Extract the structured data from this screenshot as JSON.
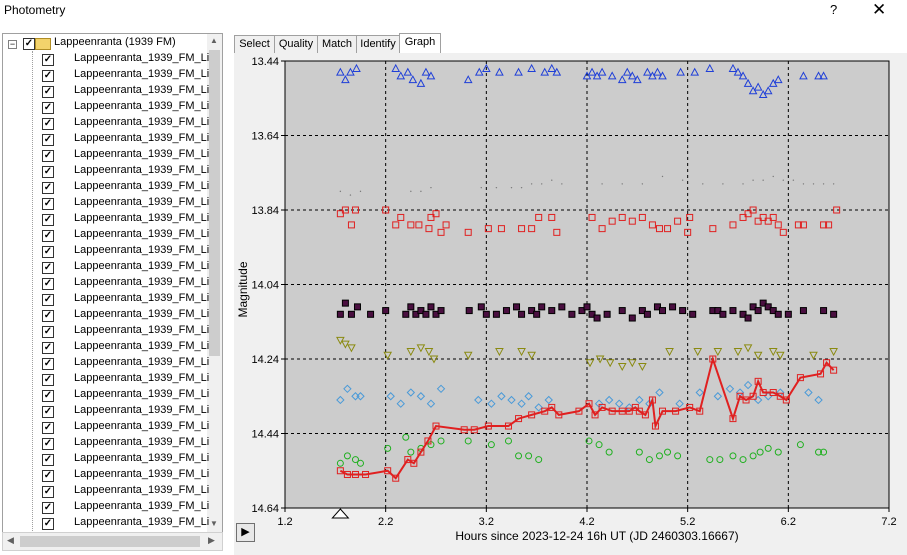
{
  "window": {
    "title": "Photometry",
    "help_glyph": "?",
    "close_glyph": "✕"
  },
  "tree": {
    "root_label": "Lappeenranta (1939 FM)",
    "item_label": "Lappeenranta_1939_FM_Li",
    "item_count": 30
  },
  "tabs": [
    {
      "label": "Select"
    },
    {
      "label": "Quality"
    },
    {
      "label": "Match"
    },
    {
      "label": "Identify"
    },
    {
      "label": "Graph",
      "active": true
    }
  ],
  "play_glyph": "▶",
  "chart_data": {
    "type": "scatter",
    "xlabel": "Hours since 2023-12-24 16h UT (JD 2460303.16667)",
    "ylabel": "Magnitude",
    "xlim": [
      1.2,
      7.2
    ],
    "ylim": [
      13.44,
      14.64
    ],
    "y_inverted": true,
    "xticks": [
      "1.2",
      "2.2",
      "3.2",
      "4.2",
      "5.2",
      "6.2",
      "7.2"
    ],
    "yticks": [
      "13.44",
      "13.64",
      "13.84",
      "14.04",
      "14.24",
      "14.44",
      "14.64"
    ],
    "grid": true,
    "marker_x": 1.75,
    "series": [
      {
        "marker": "triangle-up",
        "color": "#1f3fd8",
        "x": [
          1.75,
          1.8,
          1.85,
          1.91,
          2.3,
          2.35,
          2.42,
          2.47,
          2.55,
          2.6,
          2.65,
          3.02,
          3.13,
          3.2,
          3.33,
          3.52,
          3.65,
          3.78,
          3.85,
          3.9,
          4.2,
          4.25,
          4.3,
          4.35,
          4.45,
          4.55,
          4.6,
          4.65,
          4.7,
          4.8,
          4.85,
          4.9,
          4.95,
          5.13,
          5.27,
          5.42,
          5.65,
          5.7,
          5.75,
          5.8,
          5.85,
          5.9,
          5.95,
          6.0,
          6.05,
          6.1,
          6.35,
          6.5,
          6.55
        ],
        "y": [
          13.47,
          13.49,
          13.47,
          13.46,
          13.46,
          13.48,
          13.47,
          13.49,
          13.5,
          13.47,
          13.48,
          13.49,
          13.47,
          13.46,
          13.47,
          13.47,
          13.46,
          13.47,
          13.46,
          13.47,
          13.48,
          13.47,
          13.48,
          13.47,
          13.48,
          13.49,
          13.47,
          13.48,
          13.49,
          13.47,
          13.48,
          13.47,
          13.48,
          13.47,
          13.47,
          13.46,
          13.46,
          13.47,
          13.48,
          13.5,
          13.52,
          13.51,
          13.53,
          13.52,
          13.5,
          13.49,
          13.48,
          13.48,
          13.48
        ]
      },
      {
        "marker": "dot",
        "color": "#7a7a7a",
        "x": [
          1.75,
          1.85,
          1.95,
          2.45,
          2.55,
          2.65,
          3.15,
          3.3,
          3.45,
          3.55,
          3.65,
          3.75,
          3.85,
          3.95,
          4.35,
          4.55,
          4.75,
          4.95,
          5.15,
          5.35,
          5.55,
          5.75,
          5.85,
          5.95,
          6.05,
          6.15,
          6.25,
          6.35,
          6.45,
          6.55,
          6.65
        ],
        "y": [
          13.79,
          13.8,
          13.79,
          13.79,
          13.79,
          13.78,
          13.78,
          13.78,
          13.78,
          13.78,
          13.77,
          13.77,
          13.76,
          13.77,
          13.77,
          13.77,
          13.77,
          13.75,
          13.76,
          13.77,
          13.77,
          13.77,
          13.76,
          13.76,
          13.75,
          13.76,
          13.76,
          13.77,
          13.77,
          13.77,
          13.77
        ]
      },
      {
        "marker": "square",
        "color": "#e02020",
        "x": [
          1.75,
          1.8,
          1.86,
          1.9,
          2.2,
          2.3,
          2.35,
          2.45,
          2.53,
          2.63,
          2.65,
          2.7,
          2.75,
          2.8,
          3.02,
          3.22,
          3.35,
          3.55,
          3.65,
          3.72,
          3.85,
          3.9,
          4.25,
          4.35,
          4.45,
          4.55,
          4.65,
          4.75,
          4.85,
          4.92,
          5.0,
          5.1,
          5.2,
          5.22,
          5.45,
          5.65,
          5.75,
          5.8,
          5.85,
          5.9,
          5.95,
          6.0,
          6.05,
          6.1,
          6.15,
          6.3,
          6.35,
          6.55,
          6.6,
          6.68
        ],
        "y": [
          13.85,
          13.84,
          13.88,
          13.84,
          13.84,
          13.88,
          13.86,
          13.88,
          13.88,
          13.89,
          13.86,
          13.85,
          13.9,
          13.88,
          13.9,
          13.89,
          13.89,
          13.89,
          13.89,
          13.86,
          13.86,
          13.9,
          13.86,
          13.89,
          13.87,
          13.86,
          13.87,
          13.86,
          13.88,
          13.89,
          13.89,
          13.87,
          13.9,
          13.86,
          13.89,
          13.88,
          13.86,
          13.85,
          13.84,
          13.87,
          13.86,
          13.87,
          13.86,
          13.88,
          13.9,
          13.88,
          13.88,
          13.88,
          13.88,
          13.84
        ]
      },
      {
        "marker": "filled-square",
        "color": "#4a0f40",
        "x": [
          1.75,
          1.8,
          1.86,
          1.92,
          2.05,
          2.2,
          2.4,
          2.45,
          2.5,
          2.55,
          2.6,
          2.65,
          2.7,
          2.75,
          3.03,
          3.15,
          3.2,
          3.3,
          3.4,
          3.5,
          3.55,
          3.65,
          3.7,
          3.75,
          3.85,
          3.95,
          4.05,
          4.15,
          4.2,
          4.25,
          4.3,
          4.4,
          4.55,
          4.65,
          4.75,
          4.8,
          4.9,
          4.95,
          5.05,
          5.15,
          5.25,
          5.45,
          5.5,
          5.55,
          5.65,
          5.75,
          5.8,
          5.85,
          5.9,
          5.95,
          6.0,
          6.05,
          6.1,
          6.2,
          6.35,
          6.55,
          6.65
        ],
        "y": [
          14.12,
          14.09,
          14.12,
          14.1,
          14.12,
          14.11,
          14.12,
          14.1,
          14.12,
          14.11,
          14.12,
          14.1,
          14.12,
          14.11,
          14.11,
          14.1,
          14.12,
          14.12,
          14.11,
          14.1,
          14.12,
          14.11,
          14.12,
          14.1,
          14.11,
          14.1,
          14.12,
          14.11,
          14.1,
          14.12,
          14.13,
          14.12,
          14.11,
          14.13,
          14.11,
          14.12,
          14.1,
          14.11,
          14.1,
          14.11,
          14.12,
          14.11,
          14.11,
          14.12,
          14.11,
          14.12,
          14.13,
          14.1,
          14.11,
          14.09,
          14.1,
          14.11,
          14.12,
          14.12,
          14.11,
          14.11,
          14.12
        ]
      },
      {
        "marker": "triangle-down",
        "color": "#8a8a10",
        "x": [
          1.75,
          1.8,
          1.86,
          2.22,
          2.45,
          2.55,
          2.63,
          2.68,
          3.02,
          3.33,
          3.55,
          3.65,
          4.23,
          4.33,
          4.43,
          4.55,
          4.65,
          4.75,
          5.02,
          5.3,
          5.5,
          5.7,
          5.8,
          5.9,
          6.05,
          6.12,
          6.45,
          6.65
        ],
        "y": [
          14.19,
          14.2,
          14.21,
          14.23,
          14.22,
          14.21,
          14.22,
          14.24,
          14.23,
          14.22,
          14.22,
          14.23,
          14.25,
          14.24,
          14.25,
          14.26,
          14.25,
          14.26,
          14.22,
          14.22,
          14.22,
          14.22,
          14.21,
          14.23,
          14.22,
          14.23,
          14.23,
          14.22
        ]
      },
      {
        "marker": "diamond",
        "color": "#4a9ad8",
        "x": [
          1.75,
          1.82,
          1.9,
          1.95,
          2.25,
          2.35,
          2.45,
          2.55,
          2.65,
          2.75,
          3.12,
          3.25,
          3.35,
          3.45,
          3.55,
          3.62,
          3.72,
          3.82,
          4.32,
          4.42,
          4.52,
          4.62,
          4.72,
          4.82,
          4.92,
          5.12,
          5.32,
          5.5,
          5.62,
          5.72,
          5.8,
          5.9,
          6.0,
          6.12,
          6.4,
          6.5
        ],
        "y": [
          14.35,
          14.32,
          14.34,
          14.34,
          14.34,
          14.36,
          14.33,
          14.34,
          14.36,
          14.32,
          14.35,
          14.36,
          14.34,
          14.35,
          14.36,
          14.34,
          14.37,
          14.35,
          14.36,
          14.35,
          14.36,
          14.37,
          14.35,
          14.36,
          14.33,
          14.36,
          14.33,
          14.34,
          14.32,
          14.33,
          14.31,
          14.35,
          14.34,
          14.33,
          14.33,
          14.35
        ]
      },
      {
        "marker": "circle",
        "color": "#20b020",
        "x": [
          1.75,
          1.82,
          1.9,
          1.95,
          2.22,
          2.4,
          2.45,
          2.55,
          2.65,
          2.75,
          3.02,
          3.25,
          3.42,
          3.52,
          3.62,
          3.72,
          4.22,
          4.32,
          4.42,
          4.72,
          4.82,
          4.92,
          5.0,
          5.1,
          5.42,
          5.52,
          5.65,
          5.75,
          5.85,
          5.92,
          6.0,
          6.1,
          6.32,
          6.5,
          6.55
        ],
        "y": [
          14.52,
          14.5,
          14.51,
          14.52,
          14.48,
          14.45,
          14.49,
          14.48,
          14.47,
          14.46,
          14.46,
          14.47,
          14.46,
          14.5,
          14.5,
          14.51,
          14.46,
          14.47,
          14.49,
          14.49,
          14.51,
          14.5,
          14.49,
          14.5,
          14.51,
          14.51,
          14.5,
          14.51,
          14.5,
          14.49,
          14.48,
          14.49,
          14.47,
          14.49,
          14.49
        ]
      },
      {
        "marker": "square",
        "color": "#e02020",
        "connected": true,
        "x": [
          1.75,
          1.82,
          1.9,
          2.0,
          2.22,
          2.3,
          2.42,
          2.48,
          2.55,
          2.62,
          2.7,
          2.98,
          3.08,
          3.22,
          3.42,
          3.52,
          3.65,
          3.78,
          3.85,
          3.92,
          4.12,
          4.22,
          4.28,
          4.35,
          4.45,
          4.55,
          4.62,
          4.68,
          4.72,
          4.78,
          4.85,
          4.88,
          4.95,
          5.08,
          5.22,
          5.32,
          5.45,
          5.65,
          5.72,
          5.78,
          5.85,
          5.9,
          5.95,
          6.05,
          6.12,
          6.18,
          6.32,
          6.52,
          6.58,
          6.65
        ],
        "y": [
          14.54,
          14.55,
          14.55,
          14.55,
          14.54,
          14.56,
          14.51,
          14.52,
          14.49,
          14.46,
          14.42,
          14.43,
          14.43,
          14.42,
          14.42,
          14.4,
          14.39,
          14.38,
          14.37,
          14.39,
          14.38,
          14.36,
          14.39,
          14.37,
          14.38,
          14.38,
          14.38,
          14.37,
          14.38,
          14.39,
          14.35,
          14.42,
          14.38,
          14.38,
          14.37,
          14.38,
          14.24,
          14.4,
          14.34,
          14.35,
          14.34,
          14.3,
          14.33,
          14.33,
          14.34,
          14.35,
          14.29,
          14.28,
          14.25,
          14.27
        ]
      }
    ]
  }
}
